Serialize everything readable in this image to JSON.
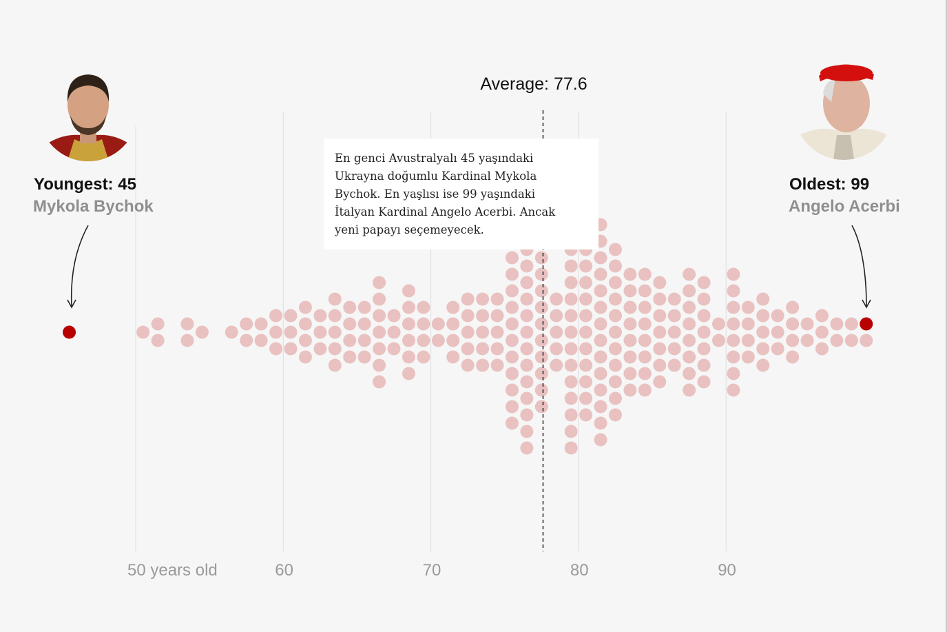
{
  "chart_data": {
    "type": "scatter",
    "subtype": "beeswarm",
    "xlabel": "",
    "x_ticks": [
      {
        "value": 50,
        "label": "50 years old"
      },
      {
        "value": 60,
        "label": "60"
      },
      {
        "value": 70,
        "label": "70"
      },
      {
        "value": 80,
        "label": "80"
      },
      {
        "value": 90,
        "label": "90"
      }
    ],
    "xlim": [
      45,
      99
    ],
    "grid": true,
    "average": {
      "value": 77.6,
      "label": "Average: 77.6"
    },
    "ages": [
      45,
      50,
      51,
      53,
      54,
      56,
      57,
      58,
      59,
      60,
      61,
      62,
      63,
      64,
      65,
      66,
      67,
      68,
      69,
      70,
      71,
      72,
      73,
      74,
      75,
      76,
      77,
      78,
      79,
      80,
      81,
      82,
      83,
      84,
      85,
      86,
      87,
      88,
      89,
      90,
      91,
      92,
      93,
      94,
      95,
      96,
      97,
      98,
      99
    ],
    "counts": [
      1,
      1,
      2,
      2,
      1,
      1,
      2,
      2,
      3,
      3,
      4,
      3,
      5,
      4,
      4,
      7,
      3,
      6,
      4,
      2,
      4,
      5,
      5,
      5,
      12,
      15,
      10,
      5,
      15,
      11,
      14,
      11,
      8,
      8,
      7,
      5,
      8,
      7,
      2,
      8,
      4,
      5,
      3,
      4,
      2,
      3,
      2,
      2,
      2
    ],
    "total": 252,
    "highlighted": [
      45,
      99
    ],
    "colors": {
      "dot": "#e9c1c1",
      "highlight": "#b80000",
      "grid": "#dedede",
      "average_line": "#222222"
    }
  },
  "youngest": {
    "title": "Youngest: 45",
    "name": "Mykola Bychok",
    "age": 45
  },
  "oldest": {
    "title": "Oldest: 99",
    "name": "Angelo Acerbi",
    "age": 99
  },
  "note": {
    "lines": [
      "En genci Avustralyalı 45 yaşındaki",
      "Ukrayna doğumlu Kardinal Mykola",
      "Bychok. En yaşlısı ise 99 yaşındaki",
      "İtalyan Kardinal Angelo Acerbi. Ancak",
      "yeni papayı seçemeyecek."
    ]
  }
}
